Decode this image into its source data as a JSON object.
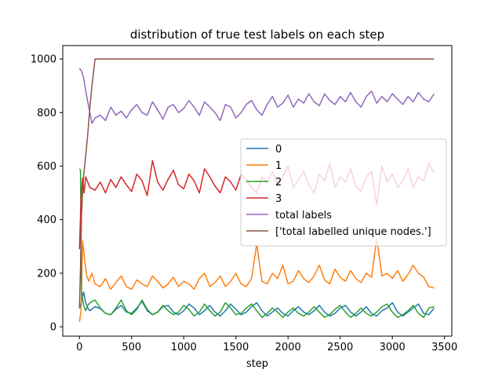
{
  "chart_data": {
    "type": "line",
    "title": "distribution of true test labels on each step",
    "xlabel": "step",
    "ylabel": "",
    "xlim": [
      -160,
      3570
    ],
    "ylim": [
      -35,
      1050
    ],
    "xticks": [
      0,
      500,
      1000,
      1500,
      2000,
      2500,
      3000,
      3500
    ],
    "yticks": [
      0,
      200,
      400,
      600,
      800,
      1000
    ],
    "grid": false,
    "legend_position": "center-right",
    "series": [
      {
        "name": "0",
        "color": "#1f77b4",
        "x": [
          0,
          20,
          40,
          60,
          80,
          100,
          150,
          200,
          250,
          300,
          350,
          400,
          450,
          500,
          550,
          600,
          650,
          700,
          750,
          800,
          850,
          900,
          950,
          1000,
          1050,
          1100,
          1150,
          1200,
          1250,
          1300,
          1350,
          1400,
          1450,
          1500,
          1550,
          1600,
          1650,
          1700,
          1750,
          1800,
          1850,
          1900,
          1950,
          2000,
          2050,
          2100,
          2150,
          2200,
          2250,
          2300,
          2350,
          2400,
          2450,
          2500,
          2550,
          2600,
          2650,
          2700,
          2750,
          2800,
          2850,
          2900,
          2950,
          3000,
          3050,
          3100,
          3150,
          3200,
          3250,
          3300,
          3350,
          3400
        ],
        "y": [
          68,
          95,
          130,
          90,
          70,
          60,
          75,
          68,
          50,
          45,
          65,
          80,
          55,
          50,
          70,
          95,
          60,
          45,
          55,
          75,
          80,
          55,
          45,
          60,
          85,
          70,
          45,
          60,
          80,
          55,
          40,
          60,
          85,
          65,
          45,
          55,
          75,
          90,
          60,
          40,
          55,
          70,
          50,
          40,
          60,
          75,
          55,
          45,
          60,
          80,
          55,
          40,
          50,
          70,
          80,
          55,
          40,
          55,
          75,
          50,
          40,
          60,
          70,
          90,
          55,
          40,
          55,
          70,
          85,
          50,
          45,
          70
        ]
      },
      {
        "name": "1",
        "color": "#ff7f0e",
        "x": [
          0,
          15,
          30,
          50,
          70,
          90,
          120,
          150,
          200,
          250,
          300,
          350,
          400,
          450,
          500,
          550,
          600,
          650,
          700,
          750,
          800,
          850,
          900,
          950,
          1000,
          1050,
          1100,
          1150,
          1200,
          1250,
          1300,
          1350,
          1400,
          1450,
          1500,
          1550,
          1600,
          1650,
          1700,
          1750,
          1800,
          1850,
          1900,
          1950,
          2000,
          2050,
          2100,
          2150,
          2200,
          2250,
          2300,
          2350,
          2400,
          2450,
          2500,
          2550,
          2600,
          2650,
          2700,
          2750,
          2800,
          2850,
          2900,
          2950,
          3000,
          3050,
          3100,
          3150,
          3200,
          3250,
          3300,
          3350,
          3400
        ],
        "y": [
          18,
          60,
          320,
          250,
          190,
          170,
          200,
          160,
          150,
          180,
          140,
          165,
          190,
          150,
          140,
          175,
          160,
          150,
          190,
          170,
          145,
          160,
          185,
          150,
          170,
          160,
          140,
          180,
          200,
          150,
          165,
          190,
          150,
          170,
          200,
          160,
          150,
          180,
          310,
          170,
          160,
          200,
          180,
          230,
          160,
          170,
          210,
          180,
          165,
          190,
          230,
          175,
          160,
          215,
          185,
          170,
          210,
          180,
          165,
          200,
          185,
          330,
          190,
          200,
          180,
          210,
          170,
          195,
          230,
          200,
          185,
          150,
          145
        ]
      },
      {
        "name": "2",
        "color": "#2ca02c",
        "x": [
          0,
          10,
          20,
          40,
          60,
          80,
          100,
          150,
          200,
          250,
          300,
          350,
          400,
          450,
          500,
          550,
          600,
          650,
          700,
          750,
          800,
          850,
          900,
          950,
          1000,
          1050,
          1100,
          1150,
          1200,
          1250,
          1300,
          1350,
          1400,
          1450,
          1500,
          1550,
          1600,
          1650,
          1700,
          1750,
          1800,
          1850,
          1900,
          1950,
          2000,
          2050,
          2100,
          2150,
          2200,
          2250,
          2300,
          2350,
          2400,
          2450,
          2500,
          2550,
          2600,
          2650,
          2700,
          2750,
          2800,
          2850,
          2900,
          2950,
          3000,
          3050,
          3100,
          3150,
          3200,
          3250,
          3300,
          3350,
          3400
        ],
        "y": [
          590,
          585,
          130,
          80,
          60,
          80,
          90,
          100,
          70,
          50,
          45,
          70,
          100,
          60,
          45,
          65,
          100,
          65,
          45,
          55,
          80,
          60,
          45,
          55,
          80,
          65,
          40,
          55,
          85,
          60,
          40,
          55,
          90,
          70,
          45,
          50,
          70,
          85,
          60,
          35,
          50,
          70,
          55,
          35,
          55,
          70,
          50,
          40,
          55,
          75,
          55,
          35,
          45,
          65,
          80,
          55,
          35,
          50,
          70,
          50,
          40,
          55,
          75,
          85,
          55,
          35,
          45,
          60,
          80,
          50,
          35,
          70,
          75
        ]
      },
      {
        "name": "3",
        "color": "#d62728",
        "x": [
          0,
          15,
          30,
          45,
          60,
          80,
          100,
          150,
          200,
          250,
          300,
          350,
          400,
          450,
          500,
          550,
          600,
          650,
          700,
          750,
          800,
          850,
          900,
          950,
          1000,
          1050,
          1100,
          1150,
          1200,
          1250,
          1300,
          1350,
          1400,
          1450,
          1500,
          1550,
          1600,
          1650,
          1700,
          1750,
          1800,
          1850,
          1900,
          1950,
          2000,
          2050,
          2100,
          2150,
          2200,
          2250,
          2300,
          2350,
          2400,
          2450,
          2500,
          2550,
          2600,
          2650,
          2700,
          2750,
          2800,
          2850,
          2900,
          2950,
          3000,
          3050,
          3100,
          3150,
          3200,
          3250,
          3300,
          3350,
          3400
        ],
        "y": [
          290,
          480,
          555,
          500,
          560,
          540,
          520,
          510,
          540,
          500,
          550,
          520,
          560,
          530,
          505,
          570,
          545,
          490,
          620,
          540,
          510,
          550,
          585,
          530,
          515,
          570,
          545,
          500,
          590,
          560,
          525,
          500,
          560,
          540,
          510,
          570,
          550,
          520,
          500,
          560,
          540,
          580,
          525,
          560,
          600,
          520,
          550,
          580,
          530,
          500,
          570,
          545,
          610,
          520,
          560,
          540,
          590,
          525,
          505,
          560,
          580,
          455,
          600,
          540,
          570,
          520,
          545,
          590,
          520,
          560,
          545,
          610,
          575
        ]
      },
      {
        "name": "total labels",
        "color": "#9467bd",
        "x": [
          0,
          20,
          40,
          60,
          80,
          100,
          120,
          150,
          200,
          250,
          300,
          350,
          400,
          450,
          500,
          550,
          600,
          650,
          700,
          750,
          800,
          850,
          900,
          950,
          1000,
          1050,
          1100,
          1150,
          1200,
          1250,
          1300,
          1350,
          1400,
          1450,
          1500,
          1550,
          1600,
          1650,
          1700,
          1750,
          1800,
          1850,
          1900,
          1950,
          2000,
          2050,
          2100,
          2150,
          2200,
          2250,
          2300,
          2350,
          2400,
          2450,
          2500,
          2550,
          2600,
          2650,
          2700,
          2750,
          2800,
          2850,
          2900,
          2950,
          3000,
          3050,
          3100,
          3150,
          3200,
          3250,
          3300,
          3350,
          3400
        ],
        "y": [
          965,
          955,
          930,
          880,
          840,
          800,
          760,
          780,
          790,
          770,
          820,
          790,
          805,
          780,
          810,
          830,
          800,
          790,
          840,
          810,
          775,
          820,
          830,
          800,
          815,
          845,
          820,
          790,
          840,
          820,
          800,
          770,
          830,
          820,
          780,
          800,
          830,
          845,
          810,
          790,
          830,
          860,
          820,
          835,
          865,
          820,
          850,
          835,
          870,
          840,
          825,
          870,
          845,
          830,
          860,
          840,
          875,
          840,
          820,
          860,
          880,
          835,
          860,
          840,
          870,
          850,
          830,
          860,
          840,
          875,
          850,
          840,
          870
        ]
      },
      {
        "name": "['total labelled unique nodes.']",
        "color": "#8c564b",
        "x": [
          0,
          10,
          20,
          40,
          60,
          80,
          100,
          120,
          150,
          200,
          300,
          500,
          1000,
          1500,
          2000,
          2500,
          3000,
          3400
        ],
        "y": [
          75,
          220,
          420,
          560,
          640,
          720,
          820,
          900,
          1000,
          1000,
          1000,
          1000,
          1000,
          1000,
          1000,
          1000,
          1000,
          1000
        ]
      }
    ]
  }
}
